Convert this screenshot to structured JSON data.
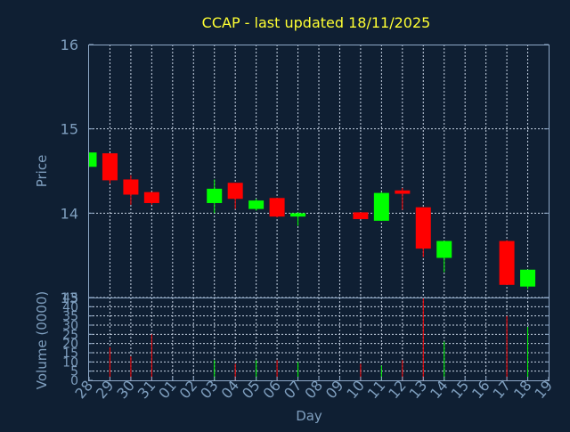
{
  "chart_data": {
    "type": "candlestick",
    "title": "CCAP - last updated 18/11/2025",
    "xlabel": "Day",
    "colors": {
      "up": "#00ff00",
      "down": "#ff0000",
      "background": "#0f1f33",
      "title": "#ffff33",
      "axis_text": "#7f9fbf"
    },
    "x_tick_labels": [
      "28",
      "29",
      "30",
      "31",
      "01",
      "02",
      "03",
      "04",
      "05",
      "06",
      "07",
      "08",
      "09",
      "10",
      "11",
      "12",
      "13",
      "14",
      "15",
      "16",
      "17",
      "18",
      "19"
    ],
    "price_panel": {
      "ylabel": "Price",
      "ylim": [
        13,
        16
      ],
      "y_ticks": [
        13,
        14,
        15,
        16
      ],
      "grid": true
    },
    "volume_panel": {
      "ylabel": "Volume (0000)",
      "ylim": [
        0,
        45
      ],
      "y_ticks": [
        0,
        5,
        10,
        15,
        20,
        25,
        30,
        35,
        40,
        45
      ],
      "grid": true
    },
    "candles": [
      {
        "day": "28",
        "open": 14.55,
        "high": 14.72,
        "low": 14.55,
        "close": 14.72,
        "volume": 0
      },
      {
        "day": "29",
        "open": 14.71,
        "high": 14.71,
        "low": 14.35,
        "close": 14.39,
        "volume": 18
      },
      {
        "day": "30",
        "open": 14.4,
        "high": 14.45,
        "low": 14.1,
        "close": 14.22,
        "volume": 13
      },
      {
        "day": "31",
        "open": 14.25,
        "high": 14.25,
        "low": 14.1,
        "close": 14.12,
        "volume": 25
      },
      {
        "day": "03",
        "open": 14.12,
        "high": 14.4,
        "low": 14.0,
        "close": 14.29,
        "volume": 11
      },
      {
        "day": "04",
        "open": 14.36,
        "high": 14.36,
        "low": 14.05,
        "close": 14.17,
        "volume": 9
      },
      {
        "day": "05",
        "open": 14.05,
        "high": 14.17,
        "low": 14.03,
        "close": 14.15,
        "volume": 11
      },
      {
        "day": "06",
        "open": 14.18,
        "high": 14.18,
        "low": 13.95,
        "close": 13.96,
        "volume": 11
      },
      {
        "day": "07",
        "open": 13.96,
        "high": 14.01,
        "low": 13.85,
        "close": 14.0,
        "volume": 10
      },
      {
        "day": "10",
        "open": 14.01,
        "high": 14.01,
        "low": 13.93,
        "close": 13.93,
        "volume": 9
      },
      {
        "day": "11",
        "open": 13.91,
        "high": 14.25,
        "low": 13.91,
        "close": 14.24,
        "volume": 8
      },
      {
        "day": "12",
        "open": 14.27,
        "high": 14.3,
        "low": 14.04,
        "close": 14.23,
        "volume": 11
      },
      {
        "day": "13",
        "open": 14.07,
        "high": 14.07,
        "low": 13.48,
        "close": 13.58,
        "volume": 45
      },
      {
        "day": "14",
        "open": 13.47,
        "high": 13.67,
        "low": 13.3,
        "close": 13.67,
        "volume": 21
      },
      {
        "day": "17",
        "open": 13.67,
        "high": 13.68,
        "low": 13.15,
        "close": 13.15,
        "volume": 35
      },
      {
        "day": "18",
        "open": 13.13,
        "high": 13.33,
        "low": 13.1,
        "close": 13.33,
        "volume": 29
      }
    ]
  }
}
